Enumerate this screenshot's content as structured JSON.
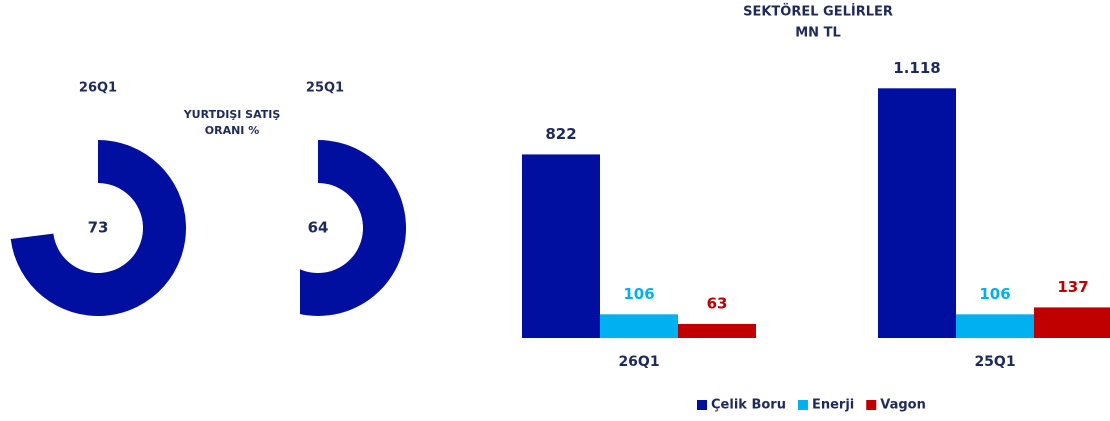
{
  "chart_data": [
    {
      "type": "donut",
      "title": [
        "YURTDIŞI SATIŞ",
        "ORANI %"
      ],
      "categories": [
        "26Q1",
        "25Q1"
      ],
      "values": [
        73,
        64
      ],
      "color": "#000f9f",
      "ylim": [
        0,
        100
      ]
    },
    {
      "type": "bar",
      "title": [
        "SEKTÖREL GELİRLER",
        "MN TL"
      ],
      "categories": [
        "26Q1",
        "25Q1"
      ],
      "series": [
        {
          "name": "Çelik Boru",
          "color": "#000f9f",
          "values": [
            822,
            1118
          ],
          "value_labels": [
            "822",
            "1.118"
          ]
        },
        {
          "name": "Enerji",
          "color": "#00b0f0",
          "values": [
            106,
            106
          ]
        },
        {
          "name": "Vagon",
          "color": "#c00000",
          "values": [
            63,
            137
          ]
        }
      ],
      "ylim": [
        0,
        1200
      ],
      "legend": "bottom"
    }
  ]
}
